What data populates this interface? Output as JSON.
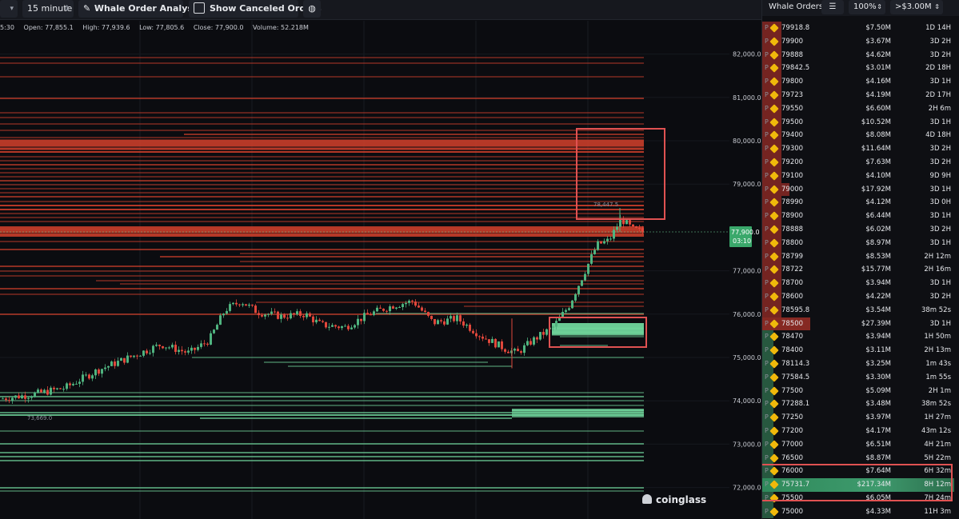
{
  "toolbar": {
    "interval": "15 minute",
    "analysis_label": "Whale Order Analysis",
    "canceled_label": "Show Canceled Orders",
    "canceled_checked": false,
    "pencil_icon": "pencil-icon",
    "palette_icon": "palette-icon"
  },
  "ohlc": {
    "time_fragment": "5:30",
    "open": "Open: 77,855.1",
    "high": "High: 77,939.6",
    "low": "Low: 77,805.6",
    "close": "Close: 77,900.0",
    "volume": "Volume: 52.218M"
  },
  "chart": {
    "y_ticks": [
      "82,000.0",
      "81,000.0",
      "80,000.0",
      "79,000.0",
      "77,000.0",
      "76,000.0",
      "75,000.0",
      "74,000.0",
      "73,000.0",
      "72,000.0"
    ],
    "current_price": "77,900.0",
    "countdown": "03:10",
    "annot_high": "78,447.5",
    "annot_low": "73,669.0",
    "colors": {
      "bg": "#0b0c10",
      "ask": "#d3402c",
      "bid": "#6fd39a",
      "up": "#4fb37f",
      "down": "#e0473b"
    }
  },
  "panel": {
    "title": "Whale Orders",
    "filter_icon": "sliders-icon",
    "zoom": "100%",
    "min_size": ">$3.00M",
    "rows": [
      {
        "price": "79918.8",
        "amount": "$7.50M",
        "age": "1D 14H",
        "side": "ask",
        "fill": 0.1
      },
      {
        "price": "79900",
        "amount": "$3.67M",
        "age": "3D 2H",
        "side": "ask",
        "fill": 0.1
      },
      {
        "price": "79888",
        "amount": "$4.62M",
        "age": "3D 2H",
        "side": "ask",
        "fill": 0.1
      },
      {
        "price": "79842.5",
        "amount": "$3.01M",
        "age": "2D 18H",
        "side": "ask",
        "fill": 0.1
      },
      {
        "price": "79800",
        "amount": "$4.16M",
        "age": "3D 1H",
        "side": "ask",
        "fill": 0.1
      },
      {
        "price": "79723",
        "amount": "$4.19M",
        "age": "2D 17H",
        "side": "ask",
        "fill": 0.1
      },
      {
        "price": "79550",
        "amount": "$6.60M",
        "age": "2H 6m",
        "side": "ask",
        "fill": 0.1
      },
      {
        "price": "79500",
        "amount": "$10.52M",
        "age": "3D 1H",
        "side": "ask",
        "fill": 0.1
      },
      {
        "price": "79400",
        "amount": "$8.08M",
        "age": "4D 18H",
        "side": "ask",
        "fill": 0.1
      },
      {
        "price": "79300",
        "amount": "$11.64M",
        "age": "3D 2H",
        "side": "ask",
        "fill": 0.1
      },
      {
        "price": "79200",
        "amount": "$7.63M",
        "age": "3D 2H",
        "side": "ask",
        "fill": 0.1
      },
      {
        "price": "79100",
        "amount": "$4.10M",
        "age": "9D 9H",
        "side": "ask",
        "fill": 0.1
      },
      {
        "price": "79000",
        "amount": "$17.92M",
        "age": "3D 1H",
        "side": "ask",
        "fill": 0.14
      },
      {
        "price": "78990",
        "amount": "$4.12M",
        "age": "3D 0H",
        "side": "ask",
        "fill": 0.1
      },
      {
        "price": "78900",
        "amount": "$6.44M",
        "age": "3D 1H",
        "side": "ask",
        "fill": 0.1
      },
      {
        "price": "78888",
        "amount": "$6.02M",
        "age": "3D 2H",
        "side": "ask",
        "fill": 0.1
      },
      {
        "price": "78800",
        "amount": "$8.97M",
        "age": "3D 1H",
        "side": "ask",
        "fill": 0.1
      },
      {
        "price": "78799",
        "amount": "$8.53M",
        "age": "2H 12m",
        "side": "ask",
        "fill": 0.1
      },
      {
        "price": "78722",
        "amount": "$15.77M",
        "age": "2H 16m",
        "side": "ask",
        "fill": 0.1
      },
      {
        "price": "78700",
        "amount": "$3.94M",
        "age": "3D 1H",
        "side": "ask",
        "fill": 0.1
      },
      {
        "price": "78600",
        "amount": "$4.22M",
        "age": "3D 2H",
        "side": "ask",
        "fill": 0.1
      },
      {
        "price": "78595.8",
        "amount": "$3.54M",
        "age": "38m 52s",
        "side": "ask",
        "fill": 0.1
      },
      {
        "price": "78500",
        "amount": "$27.39M",
        "age": "3D 1H",
        "side": "ask",
        "fill": 0.25
      },
      {
        "price": "78470",
        "amount": "$3.94M",
        "age": "1H 50m",
        "side": "bid",
        "fill": 0.06
      },
      {
        "price": "78400",
        "amount": "$3.11M",
        "age": "2H 13m",
        "side": "bid",
        "fill": 0.06
      },
      {
        "price": "78114.3",
        "amount": "$3.25M",
        "age": "1m 43s",
        "side": "bid",
        "fill": 0.06
      },
      {
        "price": "77584.5",
        "amount": "$3.30M",
        "age": "1m 55s",
        "side": "bid",
        "fill": 0.06
      },
      {
        "price": "77500",
        "amount": "$5.09M",
        "age": "2H 1m",
        "side": "bid",
        "fill": 0.06
      },
      {
        "price": "77288.1",
        "amount": "$3.48M",
        "age": "38m 52s",
        "side": "bid",
        "fill": 0.06
      },
      {
        "price": "77250",
        "amount": "$3.97M",
        "age": "1H 27m",
        "side": "bid",
        "fill": 0.06
      },
      {
        "price": "77200",
        "amount": "$4.17M",
        "age": "43m 12s",
        "side": "bid",
        "fill": 0.06
      },
      {
        "price": "77000",
        "amount": "$6.51M",
        "age": "4H 21m",
        "side": "bid",
        "fill": 0.06
      },
      {
        "price": "76500",
        "amount": "$8.87M",
        "age": "5H 22m",
        "side": "bid",
        "fill": 0.06
      },
      {
        "price": "76000",
        "amount": "$7.64M",
        "age": "6H 32m",
        "side": "bid",
        "fill": 0.06
      },
      {
        "price": "75731.7",
        "amount": "$217.34M",
        "age": "8H 12m",
        "side": "bid",
        "fill": 1.0
      },
      {
        "price": "75500",
        "amount": "$6.05M",
        "age": "7H 24m",
        "side": "bid",
        "fill": 0.06
      },
      {
        "price": "75000",
        "amount": "$4.33M",
        "age": "11H 3m",
        "side": "bid",
        "fill": 0.06
      }
    ]
  },
  "brand": "coinglass"
}
